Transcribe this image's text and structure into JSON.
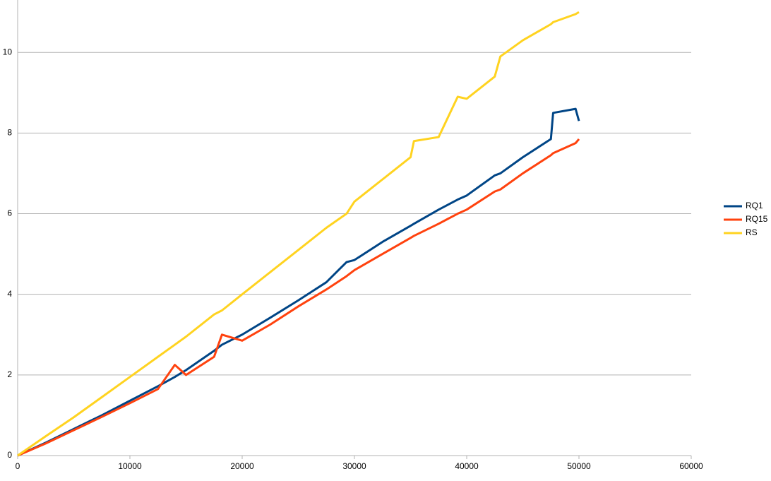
{
  "chart_data": {
    "type": "line",
    "x": [
      0,
      2500,
      5000,
      7500,
      10000,
      12500,
      14000,
      15000,
      17500,
      18200,
      20000,
      22500,
      25000,
      27500,
      29300,
      30000,
      32500,
      35000,
      35300,
      37500,
      39200,
      40000,
      42500,
      43000,
      45000,
      47500,
      47700,
      49700,
      50000
    ],
    "series": [
      {
        "name": "RQ1",
        "color": "#004586",
        "values": [
          0,
          0.32,
          0.66,
          1.0,
          1.36,
          1.72,
          1.95,
          2.12,
          2.6,
          2.75,
          3.0,
          3.42,
          3.85,
          4.3,
          4.8,
          4.85,
          5.3,
          5.7,
          5.75,
          6.1,
          6.35,
          6.45,
          6.95,
          7.0,
          7.4,
          7.85,
          8.5,
          8.6,
          8.3
        ]
      },
      {
        "name": "RQ15",
        "color": "#ff420e",
        "values": [
          0,
          0.3,
          0.63,
          0.96,
          1.3,
          1.65,
          2.25,
          2.0,
          2.45,
          3.0,
          2.85,
          3.25,
          3.7,
          4.12,
          4.45,
          4.6,
          5.0,
          5.4,
          5.45,
          5.75,
          6.0,
          6.1,
          6.55,
          6.6,
          7.0,
          7.45,
          7.5,
          7.75,
          7.85
        ]
      },
      {
        "name": "RS",
        "color": "#ffd320",
        "values": [
          0,
          0.48,
          0.95,
          1.45,
          1.95,
          2.45,
          2.75,
          2.95,
          3.5,
          3.6,
          4.0,
          4.55,
          5.1,
          5.65,
          6.0,
          6.3,
          6.85,
          7.4,
          7.8,
          7.9,
          8.9,
          8.85,
          9.4,
          9.9,
          10.3,
          10.7,
          10.75,
          10.95,
          11.0
        ]
      }
    ],
    "xlim": [
      0,
      60000
    ],
    "xticks": [
      0,
      10000,
      20000,
      30000,
      40000,
      50000,
      60000
    ],
    "ylim": [
      0,
      11.3
    ],
    "yticks": [
      0,
      2,
      4,
      6,
      8,
      10
    ],
    "grid": true,
    "legend": "right"
  }
}
